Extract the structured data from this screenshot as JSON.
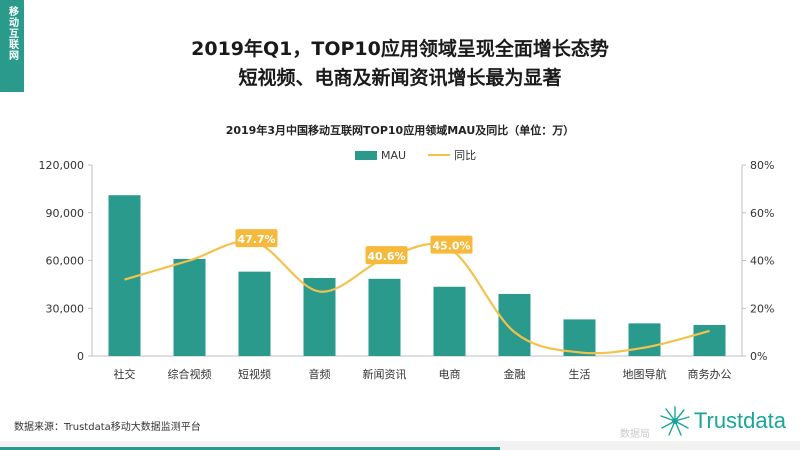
{
  "side_tab": "移动互联网",
  "headline": {
    "line1": "2019年Q1，TOP10应用领域呈现全面增长态势",
    "line2": "短视频、电商及新闻资讯增长最为显著"
  },
  "legend": {
    "bar": "MAU",
    "line": "同比"
  },
  "source": "数据来源：Trustdata移动大数据监测平台",
  "brand": "Trustdata",
  "watermark": "数据局",
  "colors": {
    "bar": "#2a9a8c",
    "line": "#f3c24d",
    "label_bg": "#f6b93b"
  },
  "chart_data": {
    "type": "bar",
    "title": "2019年3月中国移动互联网TOP10应用领域MAU及同比（单位：万）",
    "categories": [
      "社交",
      "综合视频",
      "短视频",
      "音频",
      "新闻资讯",
      "电商",
      "金融",
      "生活",
      "地图导航",
      "商务办公"
    ],
    "series": [
      {
        "name": "MAU",
        "type": "bar",
        "axis": "left",
        "values": [
          101000,
          61000,
          53000,
          49000,
          48500,
          43500,
          39000,
          23000,
          20500,
          19500
        ]
      },
      {
        "name": "同比",
        "type": "line",
        "axis": "right",
        "values": [
          32,
          40,
          47.7,
          27,
          40.6,
          45.0,
          10,
          1.5,
          3.5,
          10.5
        ]
      }
    ],
    "annotations": [
      {
        "index": 2,
        "text": "47.7%"
      },
      {
        "index": 4,
        "text": "40.6%"
      },
      {
        "index": 5,
        "text": "45.0%"
      }
    ],
    "ylim_left": [
      0,
      120000
    ],
    "yticks_left": [
      "0",
      "30,000",
      "60,000",
      "90,000",
      "120,000"
    ],
    "ylim_right": [
      0,
      80
    ],
    "yticks_right": [
      "0%",
      "20%",
      "40%",
      "60%",
      "80%"
    ],
    "grid": false,
    "legend_position": "top-center"
  }
}
